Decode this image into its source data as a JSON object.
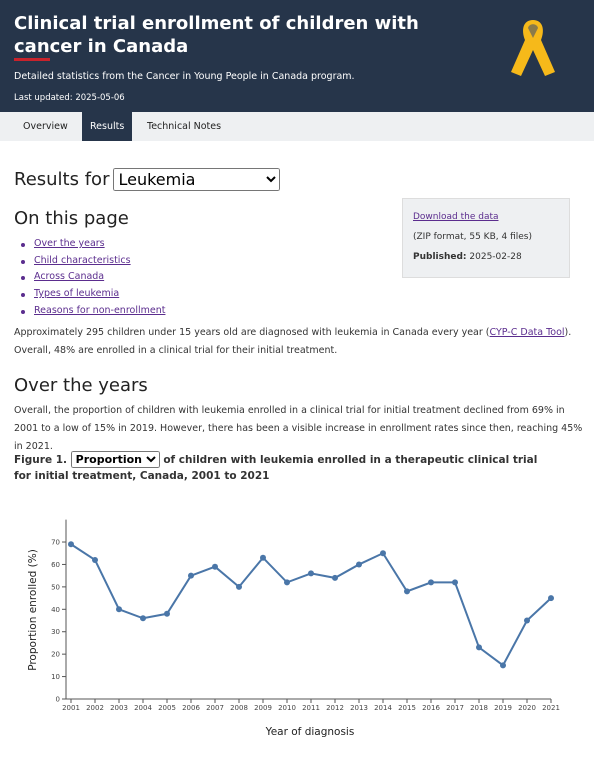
{
  "header": {
    "title": "Clinical trial enrollment of children with cancer in Canada",
    "subtitle": "Detailed statistics from the Cancer in Young People in Canada program.",
    "updated": "Last updated: 2025-05-06"
  },
  "tabs": [
    "Overview",
    "Results",
    "Technical Notes"
  ],
  "results_for": {
    "label": "Results for",
    "selected": "Leukemia"
  },
  "on_this_page": {
    "title": "On this page",
    "links": [
      "Over the years",
      "Child characteristics",
      "Across Canada",
      "Types of leukemia",
      "Reasons for non-enrollment"
    ]
  },
  "download": {
    "link": "Download the data",
    "details": "(ZIP format, 55 KB, 4 files)",
    "published_label": "Published:",
    "published_date": "2025-02-28"
  },
  "intro": [
    "Approximately 295 children under 15 years old are diagnosed with leukemia in Canada every year (",
    "CYP-C Data Tool",
    "). Overall, 48% are enrolled in a clinical trial for their initial treatment."
  ],
  "section": {
    "title": "Over the years",
    "text": "Overall, the proportion of children with leukemia enrolled in a clinical trial for initial treatment declined from 69% in 2001 to a low of 15% in 2019. However, there has been a visible increase in enrollment rates since then, reaching 45% in 2021."
  },
  "figure": {
    "label": "Figure 1.",
    "selected": "Proportion",
    "caption": "of children with leukemia enrolled in a therapeutic clinical trial for initial treatment, Canada, 2001 to 2021"
  },
  "chart_data": {
    "type": "line",
    "x_label": "Year of diagnosis",
    "y_label": "Proportion enrolled (%)",
    "x": [
      2001,
      2002,
      2003,
      2004,
      2005,
      2006,
      2007,
      2008,
      2009,
      2010,
      2011,
      2012,
      2013,
      2014,
      2015,
      2016,
      2017,
      2018,
      2019,
      2020,
      2021
    ],
    "series": [
      {
        "name": "Proportion",
        "color": "#4a76a8",
        "values": [
          69,
          62,
          40,
          36,
          38,
          55,
          59,
          50,
          63,
          52,
          56,
          54,
          60,
          65,
          48,
          52,
          52,
          23,
          15,
          35,
          45
        ]
      }
    ],
    "xlim": [
      2001,
      2021
    ],
    "xticks": [
      2001,
      2002,
      2003,
      2004,
      2005,
      2006,
      2007,
      2008,
      2009,
      2010,
      2011,
      2012,
      2013,
      2014,
      2015,
      2016,
      2017,
      2018,
      2019,
      2020,
      2021
    ],
    "ylim": [
      0,
      80
    ],
    "yticks": [
      0,
      10,
      20,
      30,
      40,
      50,
      60,
      70
    ],
    "grid": false
  }
}
